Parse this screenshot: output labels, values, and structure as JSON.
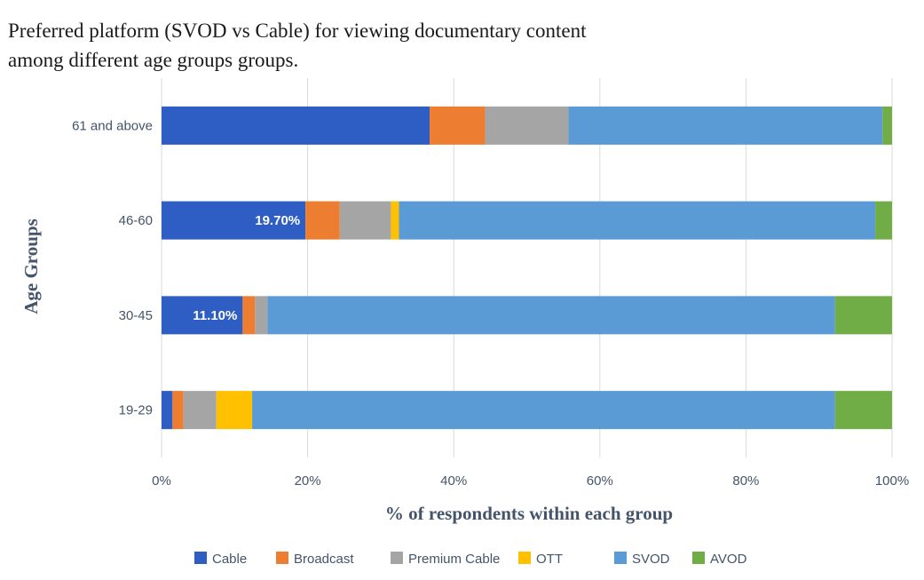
{
  "chart_data": {
    "type": "bar",
    "orientation": "horizontal",
    "stacked": "percent",
    "title": [
      "Preferred platform (SVOD vs Cable) for viewing documentary content",
      "among different age groups groups."
    ],
    "xlabel": "% of respondents within each group",
    "ylabel": "Age Groups",
    "xlim": [
      0,
      100
    ],
    "x_ticks": [
      "0%",
      "20%",
      "40%",
      "60%",
      "80%",
      "100%"
    ],
    "grid": true,
    "legend_position": "bottom",
    "categories": [
      "61 and above",
      "46-60",
      "30-45",
      "19-29"
    ],
    "series": [
      {
        "name": "Cable",
        "color": "#2e5dc3",
        "values": [
          36.7,
          19.7,
          11.1,
          1.5
        ]
      },
      {
        "name": "Broadcast",
        "color": "#ed7d31",
        "values": [
          7.6,
          4.7,
          1.7,
          1.5
        ]
      },
      {
        "name": "Premium Cable",
        "color": "#a5a5a5",
        "values": [
          11.4,
          7.0,
          1.7,
          4.5
        ]
      },
      {
        "name": "OTT",
        "color": "#ffc000",
        "values": [
          0.0,
          1.1,
          0.0,
          4.9
        ]
      },
      {
        "name": "SVOD",
        "color": "#5b9bd5",
        "values": [
          43.0,
          65.2,
          77.7,
          79.8
        ]
      },
      {
        "name": "AVOD",
        "color": "#70ad47",
        "values": [
          1.3,
          2.3,
          7.8,
          7.8
        ]
      }
    ],
    "data_labels": [
      {
        "category": "46-60",
        "series": "Cable",
        "text": "19.70%"
      },
      {
        "category": "30-45",
        "series": "Cable",
        "text": "11.10%"
      }
    ]
  }
}
